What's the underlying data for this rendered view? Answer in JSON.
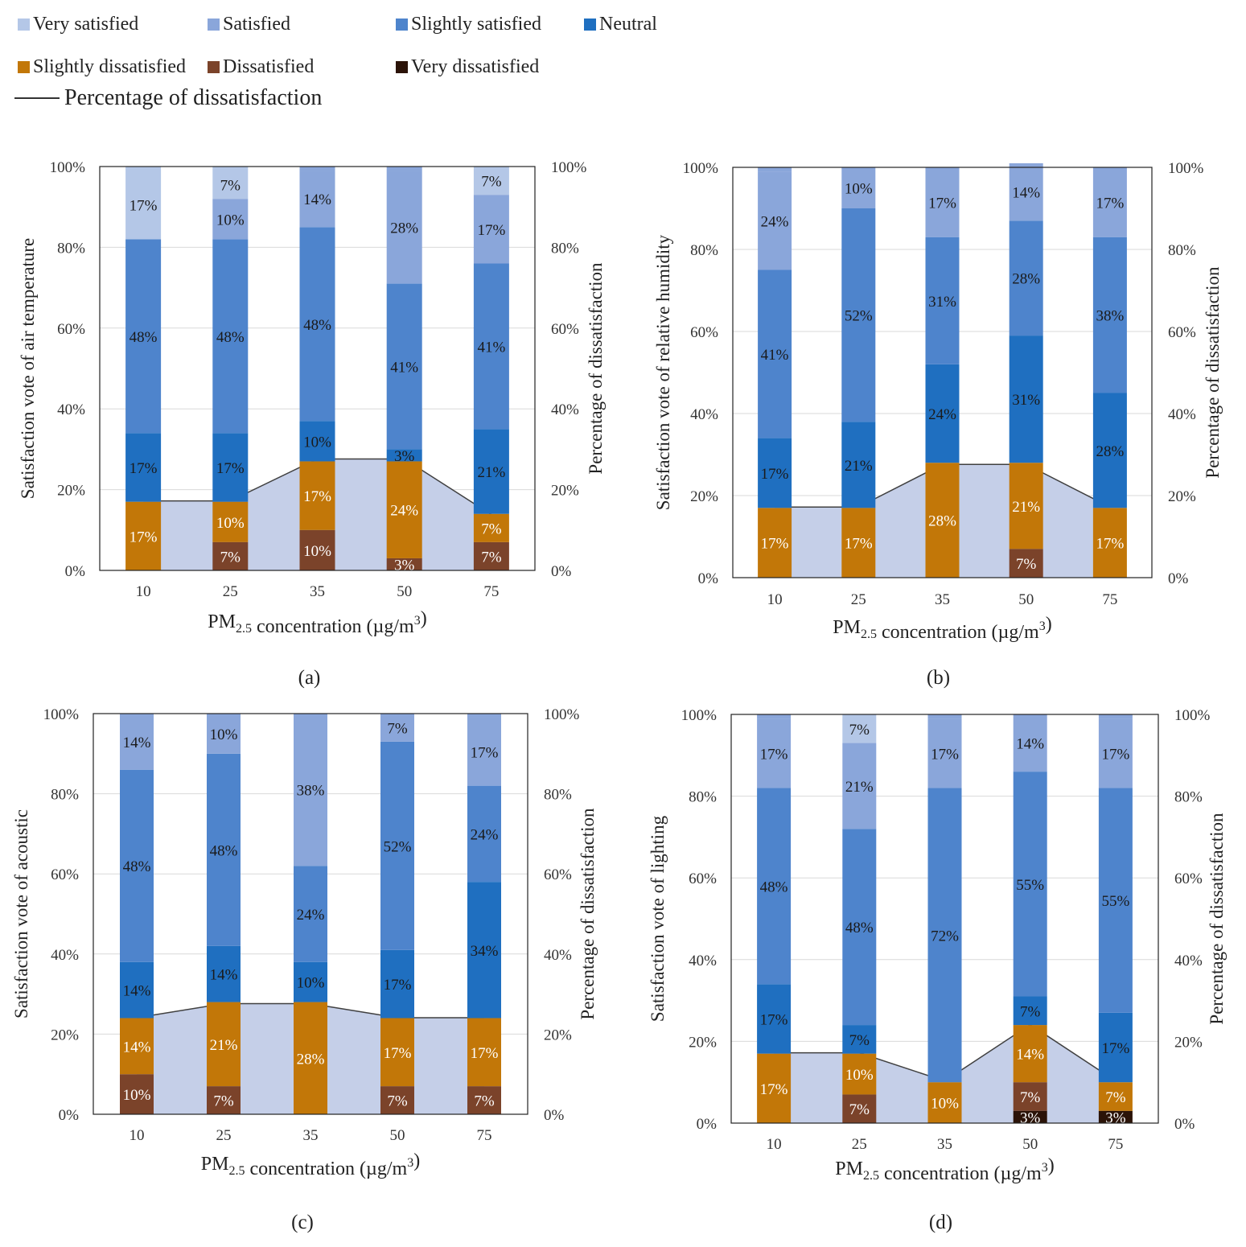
{
  "legend": {
    "items": [
      {
        "label": "Very satisfied",
        "color": "#8faadc"
      },
      {
        "label": "Satisfied",
        "color": "#8aa6da"
      },
      {
        "label": "Slightly satisfied",
        "color": "#4e84cc"
      },
      {
        "label": "Neutral",
        "color": "#1f6fc0"
      },
      {
        "label": "Slightly dissatisfied",
        "color": "#c27708"
      },
      {
        "label": "Dissatisfied",
        "color": "#7b432a"
      },
      {
        "label": "Very dissatisfied",
        "color": "#2b1308"
      }
    ],
    "line_label": "Percentage of dissatisfaction"
  },
  "chart_data": [
    {
      "type": "bar",
      "panel": "(a)",
      "ylabel": "Satisfaction  vote of air temperature",
      "y2label": "Percentage  of dissatisfaction",
      "xlabel_main": "PM",
      "xlabel_sub": "2.5",
      "xlabel_rest": " concentration  (µg/m",
      "xlabel_sup": "3",
      "xlabel_end": ")",
      "categories": [
        "10",
        "25",
        "35",
        "50",
        "75"
      ],
      "yticks": [
        "0%",
        "20%",
        "40%",
        "60%",
        "80%",
        "100%"
      ],
      "ylim": [
        0,
        100
      ],
      "series": [
        {
          "name": "Very dissatisfied",
          "values": [
            0,
            0,
            0,
            0,
            0
          ]
        },
        {
          "name": "Dissatisfied",
          "values": [
            0,
            7,
            10,
            3,
            7
          ]
        },
        {
          "name": "Slightly dissatisfied",
          "values": [
            17,
            10,
            17,
            24,
            7
          ]
        },
        {
          "name": "Neutral",
          "values": [
            17,
            17,
            10,
            3,
            21
          ]
        },
        {
          "name": "Slightly satisfied",
          "values": [
            48,
            48,
            48,
            41,
            41
          ]
        },
        {
          "name": "Satisfied",
          "values": [
            0,
            10,
            14,
            28,
            17
          ]
        },
        {
          "name": "Very satisfied",
          "values": [
            17,
            7,
            0,
            0,
            7
          ]
        }
      ],
      "labels": [
        [
          "",
          "",
          "17%",
          "17%",
          "48%",
          "",
          "17%"
        ],
        [
          "",
          "7%",
          "10%",
          "17%",
          "48%",
          "10%",
          "7%"
        ],
        [
          "",
          "10%",
          "17%",
          "10%",
          "48%",
          "14%",
          ""
        ],
        [
          "",
          "3%",
          "24%",
          "3%",
          "41%",
          "28%",
          ""
        ],
        [
          "",
          "7%",
          "7%",
          "21%",
          "41%",
          "17%",
          "7%"
        ]
      ],
      "dissatisfaction": [
        17.2,
        17.2,
        27.6,
        27.6,
        13.8
      ]
    },
    {
      "type": "bar",
      "panel": "(b)",
      "ylabel": "Satisfaction  vote of relative humidity",
      "y2label": "Percentage  of dissatisfaction",
      "xlabel_main": "PM",
      "xlabel_sub": "2.5",
      "xlabel_rest": " concentration  (µg/m",
      "xlabel_sup": "3",
      "xlabel_end": ")",
      "categories": [
        "10",
        "25",
        "35",
        "50",
        "75"
      ],
      "yticks": [
        "0%",
        "20%",
        "40%",
        "60%",
        "80%",
        "100%"
      ],
      "ylim": [
        0,
        100
      ],
      "series": [
        {
          "name": "Very dissatisfied",
          "values": [
            0,
            0,
            0,
            0,
            0
          ]
        },
        {
          "name": "Dissatisfied",
          "values": [
            0,
            0,
            0,
            7,
            0
          ]
        },
        {
          "name": "Slightly dissatisfied",
          "values": [
            17,
            17,
            28,
            21,
            17
          ]
        },
        {
          "name": "Neutral",
          "values": [
            17,
            21,
            24,
            31,
            28
          ]
        },
        {
          "name": "Slightly satisfied",
          "values": [
            41,
            52,
            31,
            28,
            38
          ]
        },
        {
          "name": "Satisfied",
          "values": [
            24,
            10,
            17,
            14,
            17
          ]
        },
        {
          "name": "Very satisfied",
          "values": [
            0,
            0,
            0,
            0,
            0
          ]
        }
      ],
      "labels": [
        [
          "",
          "",
          "17%",
          "17%",
          "41%",
          "24%",
          ""
        ],
        [
          "",
          "",
          "17%",
          "21%",
          "52%",
          "10%",
          ""
        ],
        [
          "",
          "",
          "28%",
          "24%",
          "31%",
          "17%",
          ""
        ],
        [
          "",
          "7%",
          "21%",
          "31%",
          "28%",
          "14%",
          ""
        ],
        [
          "",
          "",
          "17%",
          "28%",
          "38%",
          "17%",
          ""
        ]
      ],
      "dissatisfaction": [
        17.2,
        17.2,
        27.6,
        27.6,
        17.2
      ]
    },
    {
      "type": "bar",
      "panel": "(c)",
      "ylabel": "Satisfaction  vote of acoustic",
      "y2label": "Percentage  of dissatisfaction",
      "xlabel_main": "PM",
      "xlabel_sub": "2.5",
      "xlabel_rest": " concentration  (µg/m",
      "xlabel_sup": "3",
      "xlabel_end": ")",
      "categories": [
        "10",
        "25",
        "35",
        "50",
        "75"
      ],
      "yticks": [
        "0%",
        "20%",
        "40%",
        "60%",
        "80%",
        "100%"
      ],
      "ylim": [
        0,
        100
      ],
      "series": [
        {
          "name": "Very dissatisfied",
          "values": [
            0,
            0,
            0,
            0,
            0
          ]
        },
        {
          "name": "Dissatisfied",
          "values": [
            10,
            7,
            0,
            7,
            7
          ]
        },
        {
          "name": "Slightly dissatisfied",
          "values": [
            14,
            21,
            28,
            17,
            17
          ]
        },
        {
          "name": "Neutral",
          "values": [
            14,
            14,
            10,
            17,
            34
          ]
        },
        {
          "name": "Slightly satisfied",
          "values": [
            48,
            48,
            24,
            52,
            24
          ]
        },
        {
          "name": "Satisfied",
          "values": [
            14,
            10,
            38,
            7,
            17
          ]
        },
        {
          "name": "Very satisfied",
          "values": [
            0,
            0,
            0,
            0,
            0
          ]
        }
      ],
      "labels": [
        [
          "",
          "10%",
          "14%",
          "14%",
          "48%",
          "14%",
          ""
        ],
        [
          "",
          "7%",
          "21%",
          "14%",
          "48%",
          "10%",
          ""
        ],
        [
          "",
          "",
          "28%",
          "10%",
          "24%",
          "38%",
          ""
        ],
        [
          "",
          "7%",
          "17%",
          "17%",
          "52%",
          "7%",
          ""
        ],
        [
          "",
          "7%",
          "17%",
          "34%",
          "24%",
          "17%",
          ""
        ]
      ],
      "dissatisfaction": [
        24.1,
        27.6,
        27.6,
        24.1,
        24.1
      ]
    },
    {
      "type": "bar",
      "panel": "(d)",
      "ylabel": "Satisfaction  vote of lighting",
      "y2label": "Percentage  of dissatisfaction",
      "xlabel_main": "PM",
      "xlabel_sub": "2.5",
      "xlabel_rest": " concentration  (µg/m",
      "xlabel_sup": "3",
      "xlabel_end": ")",
      "categories": [
        "10",
        "25",
        "35",
        "50",
        "75"
      ],
      "yticks": [
        "0%",
        "20%",
        "40%",
        "60%",
        "80%",
        "100%"
      ],
      "ylim": [
        0,
        100
      ],
      "series": [
        {
          "name": "Very dissatisfied",
          "values": [
            0,
            0,
            0,
            3,
            3
          ]
        },
        {
          "name": "Dissatisfied",
          "values": [
            0,
            7,
            0,
            7,
            0
          ]
        },
        {
          "name": "Slightly dissatisfied",
          "values": [
            17,
            10,
            10,
            14,
            7
          ]
        },
        {
          "name": "Neutral",
          "values": [
            17,
            7,
            0,
            7,
            17
          ]
        },
        {
          "name": "Slightly satisfied",
          "values": [
            48,
            48,
            72,
            55,
            55
          ]
        },
        {
          "name": "Satisfied",
          "values": [
            17,
            21,
            17,
            14,
            17
          ]
        },
        {
          "name": "Very satisfied",
          "values": [
            0,
            7,
            0,
            0,
            0
          ]
        }
      ],
      "labels": [
        [
          "",
          "",
          "17%",
          "17%",
          "48%",
          "17%",
          ""
        ],
        [
          "",
          "7%",
          "10%",
          "7%",
          "48%",
          "21%",
          "7%"
        ],
        [
          "",
          "",
          "10%",
          "",
          "72%",
          "17%",
          ""
        ],
        [
          "3%",
          "7%",
          "14%",
          "7%",
          "55%",
          "14%",
          ""
        ],
        [
          "3%",
          "",
          "7%",
          "17%",
          "55%",
          "17%",
          ""
        ]
      ],
      "dissatisfaction": [
        17.2,
        17.2,
        10.3,
        24.1,
        10.3
      ]
    }
  ]
}
